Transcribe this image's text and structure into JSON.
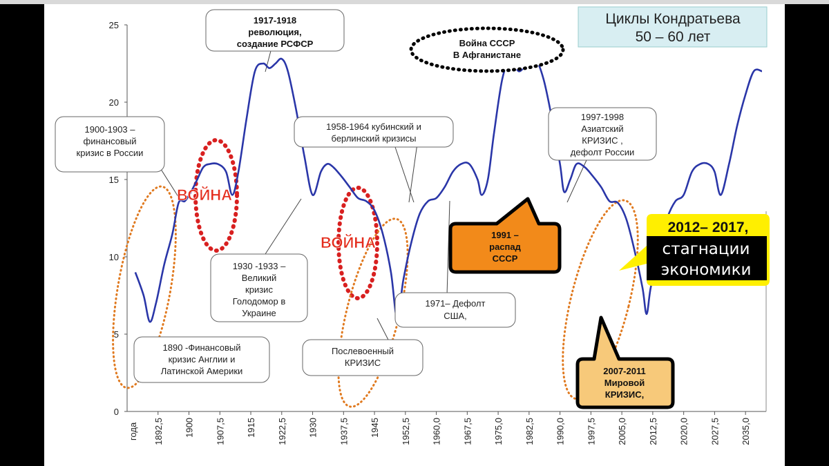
{
  "chart_data": {
    "type": "line",
    "title": "Циклы Кондратьева",
    "subtitle": "50 – 60 лет",
    "xlabel": "года",
    "ylim": [
      0,
      25
    ],
    "xlim": [
      1885,
      2040
    ],
    "grid": false,
    "y_ticks": [
      "0",
      "5",
      "10",
      "15",
      "20",
      "25"
    ],
    "x_ticks": [
      "1892,5",
      "1900",
      "1907,5",
      "1915",
      "1922,5",
      "1930",
      "1937,5",
      "1945",
      "1952,5",
      "1960,0",
      "1967,5",
      "1975,0",
      "1982,5",
      "1990,0",
      "1997,5",
      "2005,0",
      "2012,5",
      "2020,0",
      "2027,5",
      "2035,0"
    ],
    "series": [
      {
        "color": "#2a36a8",
        "x": [
          1887,
          1889,
          1890.5,
          1892,
          1894,
          1896,
          1897.5,
          1899,
          1900.5,
          1902,
          1903.5,
          1905,
          1907,
          1909,
          1910.5,
          1912,
          1914,
          1916,
          1918,
          1919.5,
          1921,
          1922.5,
          1924,
          1926,
          1928,
          1930,
          1932,
          1933.5,
          1935,
          1937,
          1939,
          1941,
          1943,
          1945,
          1947,
          1949,
          1950.5,
          1952,
          1954,
          1956,
          1958,
          1960,
          1962,
          1964,
          1966,
          1968,
          1970,
          1971,
          1972.5,
          1974,
          1976,
          1978,
          1980,
          1982,
          1984,
          1986,
          1988,
          1990,
          1991,
          1992.5,
          1994,
          1996,
          1998,
          2000,
          2002,
          2004,
          2006,
          2008,
          2010,
          2011,
          2012,
          2014,
          2016,
          2018,
          2020,
          2022,
          2024,
          2026,
          2027.5,
          2029,
          2031,
          2033,
          2035,
          2037,
          2039
        ],
        "y": [
          9.0,
          7.5,
          5.8,
          7.0,
          9.5,
          11.5,
          13.5,
          13.6,
          14.2,
          15.0,
          15.8,
          16.0,
          16.0,
          15.5,
          14.0,
          15.5,
          19.0,
          22.0,
          22.5,
          22.2,
          22.5,
          22.8,
          22.0,
          19.5,
          16.5,
          14.0,
          15.5,
          16.0,
          15.8,
          15.2,
          14.5,
          13.8,
          13.6,
          13.0,
          11.5,
          9.0,
          6.0,
          8.5,
          11.0,
          12.8,
          13.6,
          13.8,
          14.5,
          15.5,
          16.0,
          16.0,
          15.0,
          14.0,
          15.0,
          18.0,
          21.5,
          22.8,
          22.0,
          22.5,
          22.8,
          21.5,
          19.0,
          16.0,
          14.2,
          15.0,
          16.0,
          15.8,
          15.2,
          14.5,
          13.6,
          13.5,
          12.5,
          10.5,
          8.0,
          6.3,
          8.0,
          10.5,
          12.5,
          13.6,
          14.0,
          15.5,
          16.0,
          16.0,
          15.5,
          14.0,
          16.0,
          18.5,
          20.5,
          22.0,
          22.0
        ]
      }
    ],
    "annotations": [
      "1917-1918 революция, создание РСФСР",
      "1900-1903 – финансовый кризис в России",
      "ВОЙНА",
      "1930 -1933 – Великий кризис Голодомор в Украине",
      "1890 -Финансовый кризис Англии и Латинской Америки",
      "1958-1964 кубинский и берлинский кризисы",
      "Послевоенный КРИЗИС",
      "1971– Дефолт США,",
      "Война СССР В Афганистане",
      "1991 – распад СССР",
      "1997-1998 Азиатский КРИЗИС , дефолт России",
      "2012– 2017, стагнации экономики",
      "2007-2011 Мировой КРИЗИС,"
    ]
  },
  "labels": {
    "war1": "ВОЙНА",
    "war2": "ВОЙНА",
    "rev": [
      "1917-1918",
      "революция,",
      "создание РСФСР"
    ],
    "fin1900": [
      "1900-1903 –",
      "финансовый",
      "кризис в России"
    ],
    "great": [
      "1930 -1933 –",
      "Великий",
      "кризис",
      "Голодомор в",
      "Украине"
    ],
    "fin1890": [
      "1890 -Финансовый",
      "кризис Англии и",
      "Латинской Америки"
    ],
    "cuban": [
      "1958-1964 кубинский и",
      "берлинский  кризисы"
    ],
    "postwar": [
      "Послевоенный",
      "КРИЗИС"
    ],
    "usa": [
      "1971– Дефолт",
      "США,"
    ],
    "afgh": [
      "Война СССР",
      "В Афганистане"
    ],
    "ussr": [
      "1991 –",
      "распад",
      "СССР"
    ],
    "asia": [
      "1997-1998",
      "Азиатский",
      "КРИЗИС ,",
      "дефолт России"
    ],
    "stag": [
      "2012– 2017,",
      "стагнации",
      "экономики"
    ],
    "world": [
      "2007-2011",
      "Мировой",
      "КРИЗИС,"
    ]
  }
}
